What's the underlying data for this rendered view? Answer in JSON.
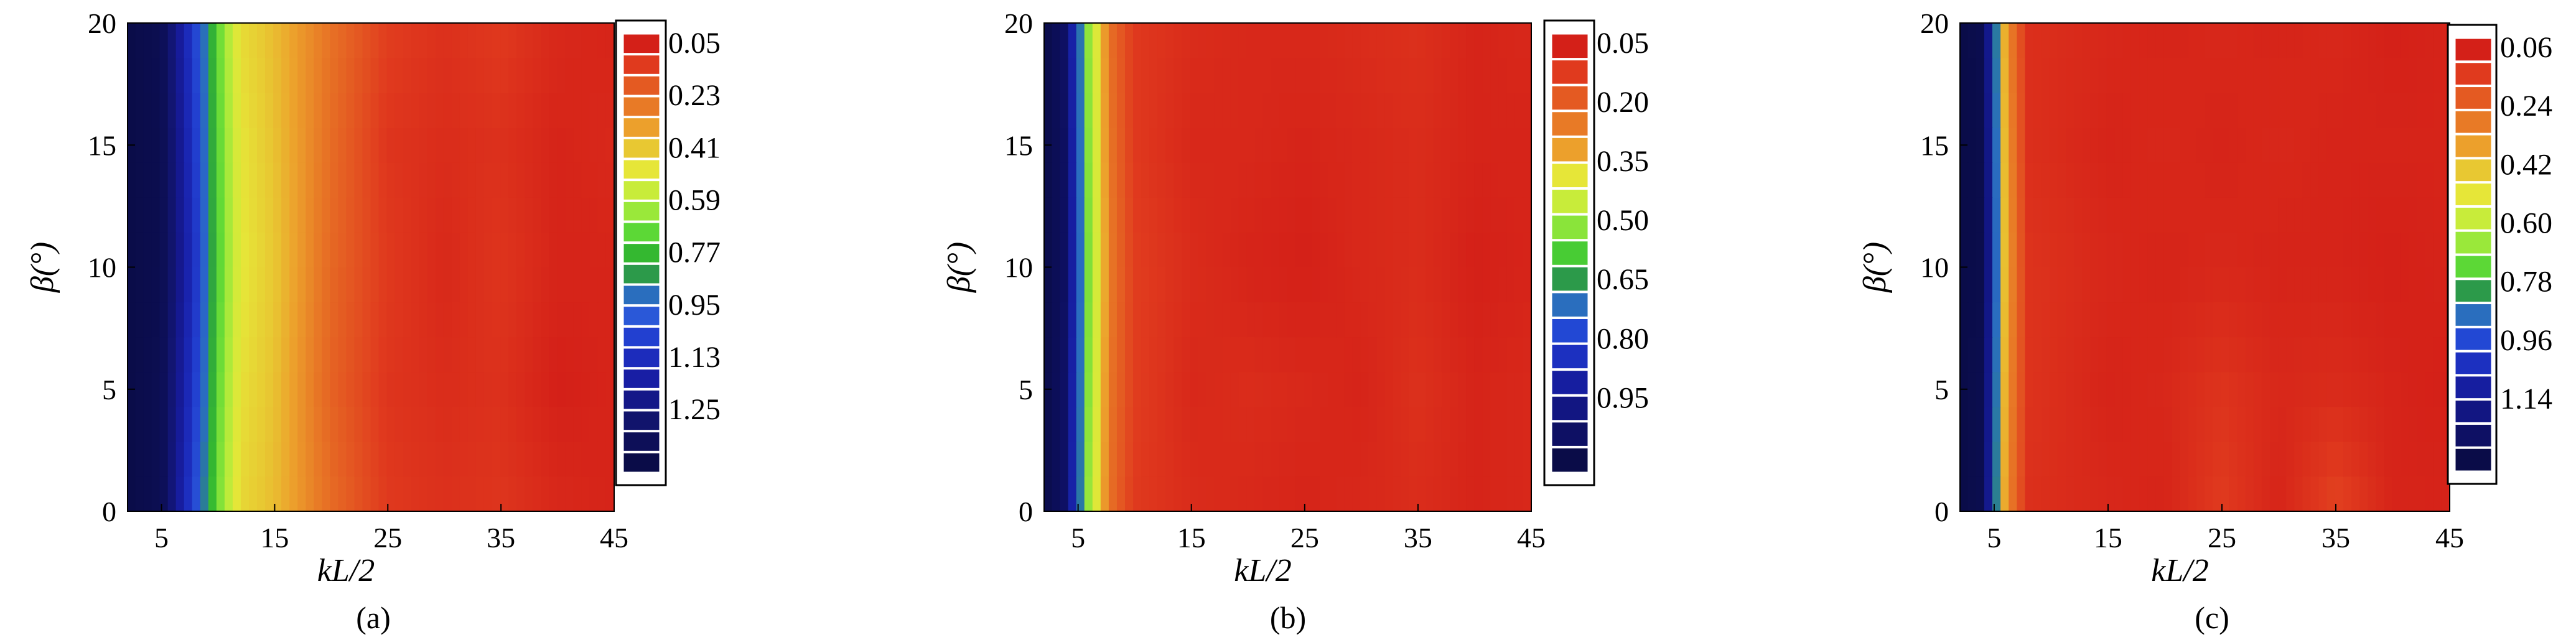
{
  "chart_data": [
    {
      "type": "heatmap",
      "panel_label": "(a)",
      "xlabel": "kL/2",
      "ylabel": "β(°)",
      "xticks": [
        5,
        15,
        25,
        35,
        45
      ],
      "yticks": [
        0,
        5,
        10,
        15,
        20
      ],
      "xlim": [
        2,
        45
      ],
      "ylim": [
        0,
        20
      ],
      "colorscale": "red (low) to dark blue (high)",
      "legend_labels": [
        "0.05",
        "0.23",
        "0.41",
        "0.59",
        "0.77",
        "0.95",
        "1.13",
        "1.25"
      ],
      "legend_placement": "right",
      "legend_colors": [
        "#d42018",
        "#e03a1e",
        "#e45a22",
        "#e87a26",
        "#eca02c",
        "#e8c832",
        "#e6e638",
        "#c8ec3a",
        "#9ae83a",
        "#5cd836",
        "#34b830",
        "#2c9a4a",
        "#2a6ebe",
        "#2a58d8",
        "#2240d0",
        "#1c2cbc",
        "#181ea4",
        "#141788",
        "#11146c",
        "#0d0f58",
        "#0a0c48"
      ],
      "x": [
        2,
        5,
        8,
        10,
        12,
        15,
        20,
        25,
        30,
        35,
        40,
        45
      ],
      "y": [
        0,
        5,
        10,
        15,
        20
      ],
      "z": [
        [
          1.28,
          1.24,
          0.88,
          0.58,
          0.38,
          0.33,
          0.2,
          0.1,
          0.08,
          0.09,
          0.06,
          0.05
        ],
        [
          1.28,
          1.24,
          0.92,
          0.6,
          0.4,
          0.34,
          0.18,
          0.09,
          0.07,
          0.08,
          0.04,
          0.05
        ],
        [
          1.28,
          1.25,
          0.95,
          0.62,
          0.42,
          0.35,
          0.19,
          0.1,
          0.06,
          0.09,
          0.05,
          0.05
        ],
        [
          1.28,
          1.25,
          0.93,
          0.61,
          0.41,
          0.34,
          0.2,
          0.09,
          0.07,
          0.08,
          0.05,
          0.06
        ],
        [
          1.28,
          1.24,
          0.9,
          0.6,
          0.39,
          0.33,
          0.21,
          0.11,
          0.08,
          0.1,
          0.06,
          0.05
        ]
      ]
    },
    {
      "type": "heatmap",
      "panel_label": "(b)",
      "xlabel": "kL/2",
      "ylabel": "β(°)",
      "xticks": [
        5,
        15,
        25,
        35,
        45
      ],
      "yticks": [
        0,
        5,
        10,
        15,
        20
      ],
      "xlim": [
        2,
        45
      ],
      "ylim": [
        0,
        20
      ],
      "colorscale": "red (low) to dark blue (high)",
      "legend_labels": [
        "0.05",
        "0.20",
        "0.35",
        "0.50",
        "0.65",
        "0.80",
        "0.95"
      ],
      "legend_placement": "right",
      "legend_colors": [
        "#d42018",
        "#e03a1e",
        "#e45a22",
        "#e87a26",
        "#eca02c",
        "#e6e638",
        "#c8ec3a",
        "#8ae43a",
        "#48cc34",
        "#2c9a4a",
        "#2a6ebe",
        "#2248d4",
        "#1c30c0",
        "#161ea0",
        "#121682",
        "#0e1064",
        "#0a0c48"
      ],
      "x": [
        2,
        4,
        6,
        8,
        10,
        15,
        20,
        25,
        30,
        35,
        40,
        45
      ],
      "y": [
        0,
        5,
        10,
        15,
        20
      ],
      "z": [
        [
          1.05,
          0.98,
          0.45,
          0.2,
          0.1,
          0.07,
          0.06,
          0.05,
          0.06,
          0.07,
          0.05,
          0.06
        ],
        [
          1.05,
          0.98,
          0.47,
          0.21,
          0.11,
          0.06,
          0.07,
          0.06,
          0.05,
          0.08,
          0.05,
          0.06
        ],
        [
          1.05,
          0.99,
          0.48,
          0.22,
          0.11,
          0.07,
          0.05,
          0.04,
          0.06,
          0.07,
          0.04,
          0.05
        ],
        [
          1.05,
          0.99,
          0.47,
          0.21,
          0.1,
          0.06,
          0.06,
          0.05,
          0.06,
          0.07,
          0.05,
          0.05
        ],
        [
          1.05,
          0.98,
          0.46,
          0.2,
          0.1,
          0.07,
          0.06,
          0.06,
          0.07,
          0.08,
          0.05,
          0.06
        ]
      ]
    },
    {
      "type": "heatmap",
      "panel_label": "(c)",
      "xlabel": "kL/2",
      "ylabel": "β(°)",
      "xticks": [
        5,
        15,
        25,
        35,
        45
      ],
      "yticks": [
        0,
        5,
        10,
        15,
        20
      ],
      "xlim": [
        2,
        45
      ],
      "ylim": [
        0,
        20
      ],
      "colorscale": "red (low) to dark blue (high)",
      "legend_labels": [
        "0.06",
        "0.24",
        "0.42",
        "0.60",
        "0.78",
        "0.96",
        "1.14"
      ],
      "legend_placement": "right",
      "legend_colors": [
        "#d42018",
        "#e03a1e",
        "#e45a22",
        "#e87a26",
        "#eca02c",
        "#e8c832",
        "#e6e638",
        "#c8ec3a",
        "#9ae83a",
        "#5cd836",
        "#2c9a4a",
        "#2a6ebe",
        "#2248d4",
        "#1c30c0",
        "#161ea0",
        "#121682",
        "#0e1064",
        "#0a0c48"
      ],
      "x": [
        2,
        4,
        5,
        6,
        8,
        15,
        20,
        25,
        30,
        35,
        40,
        45
      ],
      "y": [
        0,
        5,
        10,
        15,
        20
      ],
      "z": [
        [
          1.2,
          1.18,
          0.9,
          0.3,
          0.09,
          0.07,
          0.06,
          0.12,
          0.06,
          0.14,
          0.06,
          0.06
        ],
        [
          1.2,
          1.18,
          0.92,
          0.32,
          0.1,
          0.06,
          0.07,
          0.1,
          0.07,
          0.08,
          0.06,
          0.05
        ],
        [
          1.2,
          1.19,
          0.94,
          0.34,
          0.1,
          0.07,
          0.06,
          0.07,
          0.06,
          0.06,
          0.05,
          0.06
        ],
        [
          1.2,
          1.19,
          0.93,
          0.33,
          0.09,
          0.06,
          0.07,
          0.06,
          0.07,
          0.06,
          0.06,
          0.06
        ],
        [
          1.2,
          1.18,
          0.91,
          0.31,
          0.09,
          0.07,
          0.06,
          0.07,
          0.06,
          0.07,
          0.05,
          0.06
        ]
      ]
    }
  ]
}
